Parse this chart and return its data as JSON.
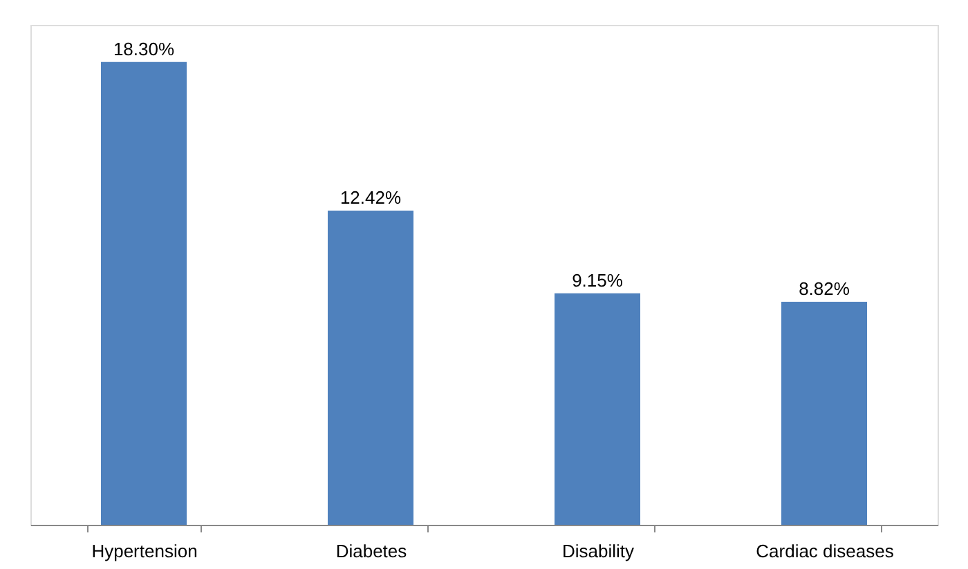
{
  "chart_data": {
    "type": "bar",
    "categories": [
      "Hypertension",
      "Diabetes",
      "Disability",
      "Cardiac diseases"
    ],
    "values": [
      18.3,
      12.42,
      9.15,
      8.82
    ],
    "value_labels": [
      "18.30%",
      "12.42%",
      "9.15%",
      "8.82%"
    ],
    "color": "#4f81bd",
    "grid": false
  }
}
